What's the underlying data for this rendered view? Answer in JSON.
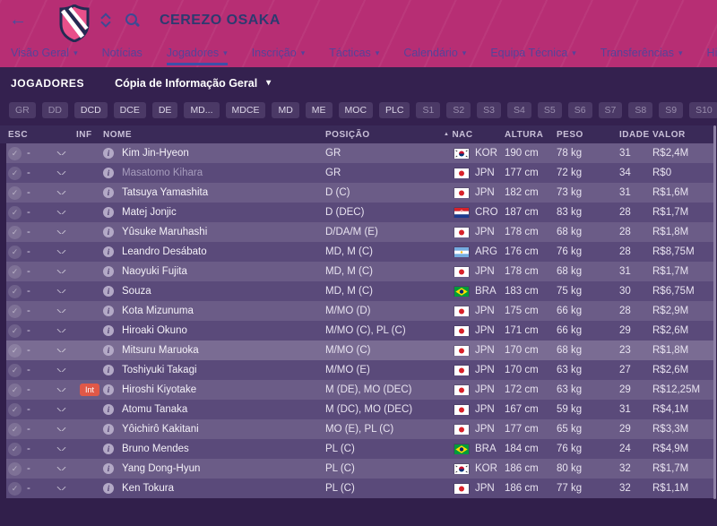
{
  "header": {
    "title": "CEREZO OSAKA",
    "nav": [
      {
        "label": "Visão Geral",
        "dropdown": true,
        "active": false
      },
      {
        "label": "Notícias",
        "dropdown": false,
        "active": false
      },
      {
        "label": "Jogadores",
        "dropdown": true,
        "active": true
      },
      {
        "label": "Inscrição",
        "dropdown": true,
        "active": false
      },
      {
        "label": "Tácticas",
        "dropdown": true,
        "active": false
      },
      {
        "label": "Calendário",
        "dropdown": true,
        "active": false
      },
      {
        "label": "Equipa Técnica",
        "dropdown": true,
        "active": false
      },
      {
        "label": "Transferências",
        "dropdown": true,
        "active": false
      },
      {
        "label": "Historial",
        "dropdown": true,
        "active": false
      }
    ]
  },
  "toolbar": {
    "section_label": "JOGADORES",
    "view_selector": "Cópia de Informação Geral"
  },
  "filters": [
    {
      "label": "GR",
      "bright": false
    },
    {
      "label": "DD",
      "bright": false
    },
    {
      "label": "DCD",
      "bright": true
    },
    {
      "label": "DCE",
      "bright": true
    },
    {
      "label": "DE",
      "bright": true
    },
    {
      "label": "MD...",
      "bright": true
    },
    {
      "label": "MDCE",
      "bright": true
    },
    {
      "label": "MD",
      "bright": true
    },
    {
      "label": "ME",
      "bright": true
    },
    {
      "label": "MOC",
      "bright": true
    },
    {
      "label": "PLC",
      "bright": true
    },
    {
      "label": "S1",
      "bright": false
    },
    {
      "label": "S2",
      "bright": false
    },
    {
      "label": "S3",
      "bright": false
    },
    {
      "label": "S4",
      "bright": false
    },
    {
      "label": "S5",
      "bright": false
    },
    {
      "label": "S6",
      "bright": false
    },
    {
      "label": "S7",
      "bright": false
    },
    {
      "label": "S8",
      "bright": false
    },
    {
      "label": "S9",
      "bright": false
    },
    {
      "label": "S10",
      "bright": false
    },
    {
      "label": "S11",
      "bright": false
    },
    {
      "label": "S12",
      "bright": false
    }
  ],
  "table": {
    "columns": {
      "esc": "ESC",
      "inf": "INF",
      "nome": "NOME",
      "posicao": "POSIÇÃO",
      "nac": "NAC",
      "altura": "ALTURA",
      "peso": "PESO",
      "idade": "IDADE",
      "valor": "VALOR"
    },
    "sort_column": "NAC",
    "esc_value": "-",
    "players": [
      {
        "name": "Kim Jin-Hyeon",
        "pos": "GR",
        "flag": "KOR",
        "nat": "KOR",
        "altura": "190 cm",
        "peso": "78 kg",
        "idade": "31",
        "valor": "R$2,4M",
        "dimmed": false,
        "badge": "",
        "highlighted": false
      },
      {
        "name": "Masatomo Kihara",
        "pos": "GR",
        "flag": "JPN",
        "nat": "JPN",
        "altura": "177 cm",
        "peso": "72 kg",
        "idade": "34",
        "valor": "R$0",
        "dimmed": true,
        "badge": "",
        "highlighted": false
      },
      {
        "name": "Tatsuya Yamashita",
        "pos": "D (C)",
        "flag": "JPN",
        "nat": "JPN",
        "altura": "182 cm",
        "peso": "73 kg",
        "idade": "31",
        "valor": "R$1,6M",
        "dimmed": false,
        "badge": "",
        "highlighted": false
      },
      {
        "name": "Matej Jonjic",
        "pos": "D (DEC)",
        "flag": "CRO",
        "nat": "CRO",
        "altura": "187 cm",
        "peso": "83 kg",
        "idade": "28",
        "valor": "R$1,7M",
        "dimmed": false,
        "badge": "",
        "highlighted": false
      },
      {
        "name": "Yûsuke Maruhashi",
        "pos": "D/DA/M (E)",
        "flag": "JPN",
        "nat": "JPN",
        "altura": "178 cm",
        "peso": "68 kg",
        "idade": "28",
        "valor": "R$1,8M",
        "dimmed": false,
        "badge": "",
        "highlighted": false
      },
      {
        "name": "Leandro Desábato",
        "pos": "MD, M (C)",
        "flag": "ARG",
        "nat": "ARG",
        "altura": "176 cm",
        "peso": "76 kg",
        "idade": "28",
        "valor": "R$8,75M",
        "dimmed": false,
        "badge": "",
        "highlighted": false
      },
      {
        "name": "Naoyuki Fujita",
        "pos": "MD, M (C)",
        "flag": "JPN",
        "nat": "JPN",
        "altura": "178 cm",
        "peso": "68 kg",
        "idade": "31",
        "valor": "R$1,7M",
        "dimmed": false,
        "badge": "",
        "highlighted": false
      },
      {
        "name": "Souza",
        "pos": "MD, M (C)",
        "flag": "BRA",
        "nat": "BRA",
        "altura": "183 cm",
        "peso": "75 kg",
        "idade": "30",
        "valor": "R$6,75M",
        "dimmed": false,
        "badge": "",
        "highlighted": false
      },
      {
        "name": "Kota Mizunuma",
        "pos": "M/MO (D)",
        "flag": "JPN",
        "nat": "JPN",
        "altura": "175 cm",
        "peso": "66 kg",
        "idade": "28",
        "valor": "R$2,9M",
        "dimmed": false,
        "badge": "",
        "highlighted": false
      },
      {
        "name": "Hiroaki Okuno",
        "pos": "M/MO (C), PL (C)",
        "flag": "JPN",
        "nat": "JPN",
        "altura": "171 cm",
        "peso": "66 kg",
        "idade": "29",
        "valor": "R$2,6M",
        "dimmed": false,
        "badge": "",
        "highlighted": false
      },
      {
        "name": "Mitsuru Maruoka",
        "pos": "M/MO (C)",
        "flag": "JPN",
        "nat": "JPN",
        "altura": "170 cm",
        "peso": "68 kg",
        "idade": "23",
        "valor": "R$1,8M",
        "dimmed": false,
        "badge": "",
        "highlighted": true
      },
      {
        "name": "Toshiyuki Takagi",
        "pos": "M/MO (E)",
        "flag": "JPN",
        "nat": "JPN",
        "altura": "170 cm",
        "peso": "63 kg",
        "idade": "27",
        "valor": "R$2,6M",
        "dimmed": false,
        "badge": "",
        "highlighted": false
      },
      {
        "name": "Hiroshi Kiyotake",
        "pos": "M (DE), MO (DEC)",
        "flag": "JPN",
        "nat": "JPN",
        "altura": "172 cm",
        "peso": "63 kg",
        "idade": "29",
        "valor": "R$12,25M",
        "dimmed": false,
        "badge": "Int",
        "highlighted": false
      },
      {
        "name": "Atomu Tanaka",
        "pos": "M (DC), MO (DEC)",
        "flag": "JPN",
        "nat": "JPN",
        "altura": "167 cm",
        "peso": "59 kg",
        "idade": "31",
        "valor": "R$4,1M",
        "dimmed": false,
        "badge": "",
        "highlighted": false
      },
      {
        "name": "Yôichirô Kakitani",
        "pos": "MO (E), PL (C)",
        "flag": "JPN",
        "nat": "JPN",
        "altura": "177 cm",
        "peso": "65 kg",
        "idade": "29",
        "valor": "R$3,3M",
        "dimmed": false,
        "badge": "",
        "highlighted": false
      },
      {
        "name": "Bruno Mendes",
        "pos": "PL (C)",
        "flag": "BRA",
        "nat": "BRA",
        "altura": "184 cm",
        "peso": "76 kg",
        "idade": "24",
        "valor": "R$4,9M",
        "dimmed": false,
        "badge": "",
        "highlighted": false
      },
      {
        "name": "Yang Dong-Hyun",
        "pos": "PL (C)",
        "flag": "KOR",
        "nat": "KOR",
        "altura": "186 cm",
        "peso": "80 kg",
        "idade": "32",
        "valor": "R$1,7M",
        "dimmed": false,
        "badge": "",
        "highlighted": false
      },
      {
        "name": "Ken Tokura",
        "pos": "PL (C)",
        "flag": "JPN",
        "nat": "JPN",
        "altura": "186 cm",
        "peso": "77 kg",
        "idade": "32",
        "valor": "R$1,1M",
        "dimmed": false,
        "badge": "",
        "highlighted": false
      }
    ]
  },
  "colors": {
    "topbar": "#b72e74",
    "title": "#2d3a70",
    "nav_text": "#55439a",
    "nav_underline": "#3e50a8",
    "toolbar_bg": "#34214f",
    "header_bg": "#3a2a58",
    "row_light": "#6b5c87",
    "row_dark": "#5a4a7a",
    "row_highlight": "#7a6c93",
    "badge_int": "#e05848",
    "page_bg": "#311f4b"
  }
}
